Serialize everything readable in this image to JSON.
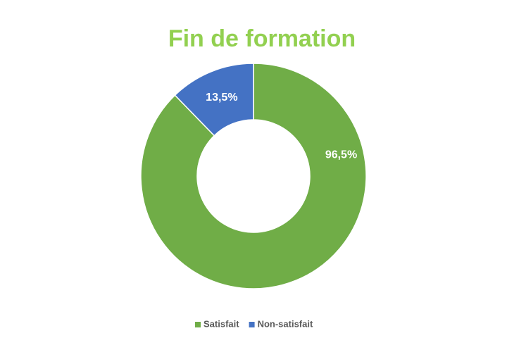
{
  "chart_data": {
    "type": "donut",
    "title": "Fin de formation",
    "categories": [
      "Satisfait",
      "Non-satisfait"
    ],
    "values": [
      96.5,
      13.5
    ],
    "value_labels": [
      "96,5%",
      "13,5%"
    ],
    "colors": [
      "#70ad47",
      "#4472c4"
    ],
    "legend": "bottom"
  }
}
